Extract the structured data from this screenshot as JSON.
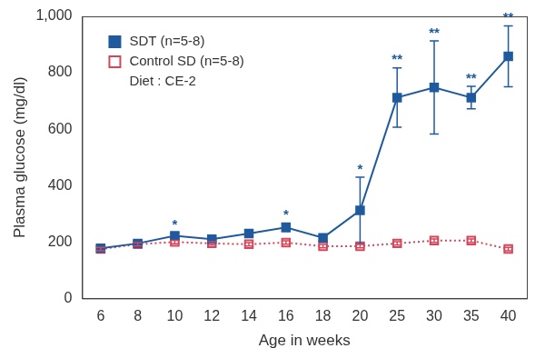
{
  "chart_data": {
    "type": "line",
    "x_label": "Age in weeks",
    "y_label": "Plasma glucose (mg/dl)",
    "annotation": "Diet : CE-2",
    "categories": [
      "6",
      "8",
      "10",
      "12",
      "14",
      "16",
      "18",
      "20",
      "25",
      "30",
      "35",
      "40"
    ],
    "series": [
      {
        "name": "SDT (n=5-8)",
        "color": "#1f5a9e",
        "marker": "square",
        "line_style": "solid",
        "values": [
          178,
          195,
          222,
          210,
          230,
          252,
          215,
          312,
          712,
          748,
          712,
          858
        ],
        "errors": [
          8,
          8,
          10,
          8,
          8,
          15,
          10,
          118,
          105,
          165,
          40,
          108
        ],
        "significance": [
          null,
          null,
          "*",
          null,
          null,
          "*",
          null,
          "*",
          "**",
          "**",
          "**",
          "**"
        ]
      },
      {
        "name": "Control SD (n=5-8)",
        "color": "#d6455a",
        "marker": "open square",
        "line_style": "dotted",
        "values": [
          175,
          192,
          200,
          195,
          192,
          198,
          185,
          185,
          195,
          205,
          205,
          175
        ],
        "errors": [
          6,
          6,
          6,
          6,
          6,
          6,
          6,
          6,
          6,
          6,
          6,
          6
        ]
      }
    ],
    "ylim": [
      0,
      1000
    ],
    "yticks": [
      0,
      200,
      400,
      600,
      800,
      1000
    ],
    "grid": false,
    "legend": "upper left"
  }
}
